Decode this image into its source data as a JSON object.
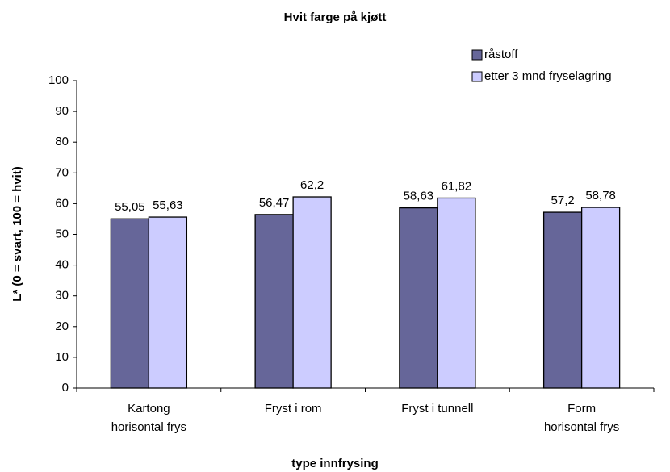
{
  "chart_data": {
    "type": "bar",
    "title": "Hvit farge på kjøtt",
    "x_label": "type innfrysing",
    "y_label": "L* (0 = svart, 100 = hvit)",
    "categories": [
      "Kartong horisontal frys",
      "Fryst i rom",
      "Fryst i tunnell",
      "Form horisontal frys"
    ],
    "series": [
      {
        "name": "råstoff",
        "color": "#666699",
        "values": [
          55.05,
          56.47,
          58.63,
          57.2
        ],
        "value_labels": [
          "55,05",
          "56,47",
          "58,63",
          "57,2"
        ]
      },
      {
        "name": "etter 3 mnd fryselagring",
        "color": "#ccccff",
        "values": [
          55.63,
          62.2,
          61.82,
          58.78
        ],
        "value_labels": [
          "55,63",
          "62,2",
          "61,82",
          "58,78"
        ]
      }
    ],
    "ylim": [
      0,
      100
    ],
    "yticks": [
      0,
      10,
      20,
      30,
      40,
      50,
      60,
      70,
      80,
      90,
      100
    ],
    "grid": false,
    "legend": "top-right"
  }
}
